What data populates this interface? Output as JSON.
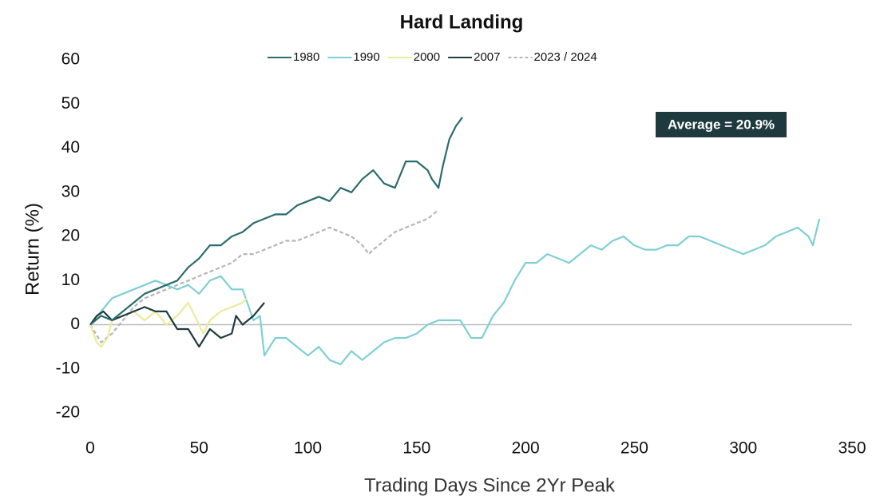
{
  "chart_data": {
    "type": "line",
    "title": "Hard Landing",
    "xlabel": "Trading Days Since 2Yr Peak",
    "ylabel": "Return (%)",
    "annotation": "Average = 20.9%",
    "xlim": [
      0,
      350
    ],
    "xticks": [
      0,
      50,
      100,
      150,
      200,
      250,
      300,
      350
    ],
    "ylim": [
      -20,
      60
    ],
    "yticks": [
      60,
      50,
      40,
      30,
      20,
      10,
      0,
      -10,
      -20
    ],
    "legend": "top",
    "grid": false,
    "series": [
      {
        "name": "1980",
        "color": "#2b6c6c",
        "dashed": false,
        "x": [
          0,
          5,
          10,
          15,
          20,
          25,
          30,
          35,
          40,
          45,
          50,
          55,
          60,
          65,
          70,
          75,
          80,
          85,
          90,
          95,
          100,
          105,
          110,
          115,
          120,
          125,
          130,
          135,
          140,
          145,
          150,
          155,
          157,
          160,
          162,
          165,
          168,
          171
        ],
        "values": [
          0,
          2,
          1,
          3,
          5,
          7,
          8,
          9,
          10,
          13,
          15,
          18,
          18,
          20,
          21,
          23,
          24,
          25,
          25,
          27,
          28,
          29,
          28,
          31,
          30,
          33,
          35,
          32,
          31,
          37,
          37,
          35,
          33,
          31,
          36,
          42,
          45,
          47
        ]
      },
      {
        "name": "1990",
        "color": "#7ecfd4",
        "dashed": false,
        "x": [
          0,
          5,
          10,
          15,
          20,
          25,
          30,
          35,
          40,
          45,
          50,
          55,
          60,
          65,
          70,
          75,
          78,
          80,
          85,
          90,
          95,
          100,
          105,
          110,
          115,
          120,
          125,
          130,
          135,
          140,
          145,
          150,
          155,
          160,
          165,
          170,
          175,
          180,
          185,
          190,
          195,
          200,
          205,
          210,
          215,
          220,
          225,
          230,
          235,
          240,
          245,
          250,
          255,
          260,
          265,
          270,
          275,
          280,
          285,
          290,
          295,
          300,
          305,
          310,
          315,
          320,
          325,
          330,
          332,
          335
        ],
        "values": [
          0,
          3,
          6,
          7,
          8,
          9,
          10,
          9,
          8,
          9,
          7,
          10,
          11,
          8,
          8,
          1,
          2,
          -7,
          -3,
          -3,
          -5,
          -7,
          -5,
          -8,
          -9,
          -6,
          -8,
          -6,
          -4,
          -3,
          -3,
          -2,
          0,
          1,
          1,
          1,
          -3,
          -3,
          2,
          5,
          10,
          14,
          14,
          16,
          15,
          14,
          16,
          18,
          17,
          19,
          20,
          18,
          17,
          17,
          18,
          18,
          20,
          20,
          19,
          18,
          17,
          16,
          17,
          18,
          20,
          21,
          22,
          20,
          18,
          24
        ]
      },
      {
        "name": "2000",
        "color": "#eaeb9a",
        "dashed": false,
        "x": [
          0,
          3,
          5,
          8,
          10,
          15,
          20,
          25,
          30,
          35,
          40,
          45,
          50,
          52,
          55,
          60,
          65,
          70,
          72
        ],
        "values": [
          0,
          -4,
          -5,
          -3,
          1,
          2,
          3,
          1,
          3,
          0,
          2,
          5,
          0,
          -2,
          1,
          3,
          4,
          5,
          6
        ]
      },
      {
        "name": "2007",
        "color": "#1f3a40",
        "dashed": false,
        "x": [
          0,
          3,
          6,
          10,
          15,
          20,
          25,
          30,
          35,
          40,
          45,
          50,
          55,
          60,
          65,
          67,
          70,
          75,
          80
        ],
        "values": [
          0,
          2,
          3,
          1,
          2,
          3,
          4,
          3,
          3,
          -1,
          -1,
          -5,
          -1,
          -3,
          -2,
          2,
          0,
          2,
          5
        ]
      },
      {
        "name": "2023 / 2024",
        "color": "#b5b5b5",
        "dashed": true,
        "x": [
          0,
          5,
          10,
          15,
          20,
          25,
          30,
          35,
          40,
          45,
          50,
          55,
          60,
          65,
          70,
          75,
          80,
          85,
          90,
          95,
          100,
          105,
          110,
          115,
          120,
          125,
          128,
          130,
          135,
          140,
          145,
          150,
          155,
          160
        ],
        "values": [
          0,
          -4,
          -2,
          1,
          4,
          6,
          7,
          8,
          9,
          10,
          11,
          12,
          13,
          14,
          16,
          16,
          17,
          18,
          19,
          19,
          20,
          21,
          22,
          21,
          20,
          18,
          16,
          17,
          19,
          21,
          22,
          23,
          24,
          26
        ]
      }
    ]
  }
}
